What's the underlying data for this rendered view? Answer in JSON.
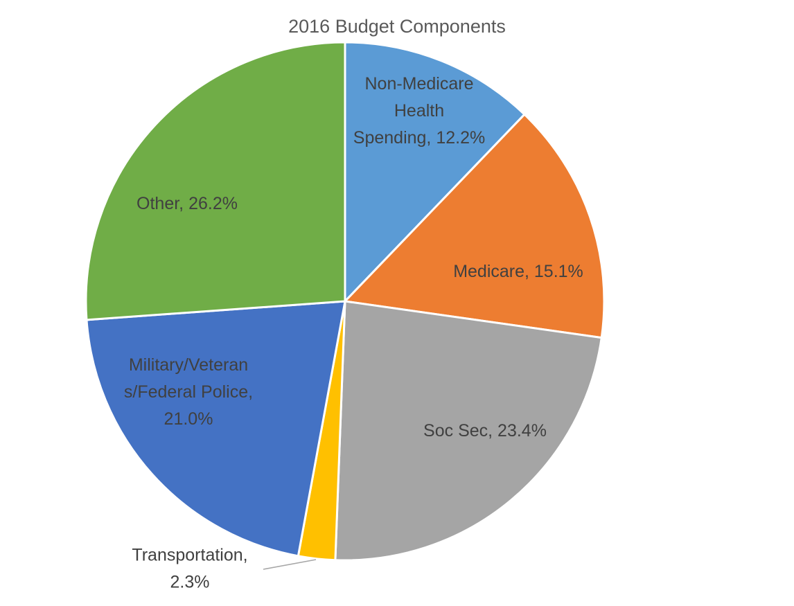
{
  "chart_data": {
    "type": "pie",
    "title": "2016 Budget Components",
    "slices": [
      {
        "label": "Non-Medicare Health Spending",
        "value": 12.2,
        "display": "12.2%",
        "color": "#5B9BD5"
      },
      {
        "label": "Medicare",
        "value": 15.1,
        "display": "15.1%",
        "color": "#ED7D31"
      },
      {
        "label": "Soc Sec",
        "value": 23.4,
        "display": "23.4%",
        "color": "#A5A5A5"
      },
      {
        "label": "Transportation",
        "value": 2.3,
        "display": "2.3%",
        "color": "#FFC000"
      },
      {
        "label": "Military/Veterans/Federal Police",
        "value": 21.0,
        "display": "21.0%",
        "color": "#4472C4"
      },
      {
        "label": "Other",
        "value": 26.2,
        "display": "26.2%",
        "color": "#70AD47"
      }
    ],
    "data_labels": [
      {
        "lines": [
          "Non-Medicare",
          "Health",
          "Spending, 12.2%"
        ]
      },
      {
        "lines": [
          "Medicare, 15.1%"
        ]
      },
      {
        "lines": [
          "Soc Sec, 23.4%"
        ]
      },
      {
        "lines": [
          "Transportation,",
          "2.3%"
        ]
      },
      {
        "lines": [
          "Military/Veteran",
          "s/Federal Police,",
          "21.0%"
        ]
      },
      {
        "lines": [
          "Other, 26.2%"
        ]
      }
    ],
    "start_angle_deg": 0,
    "direction": "clockwise",
    "legend": "none"
  }
}
